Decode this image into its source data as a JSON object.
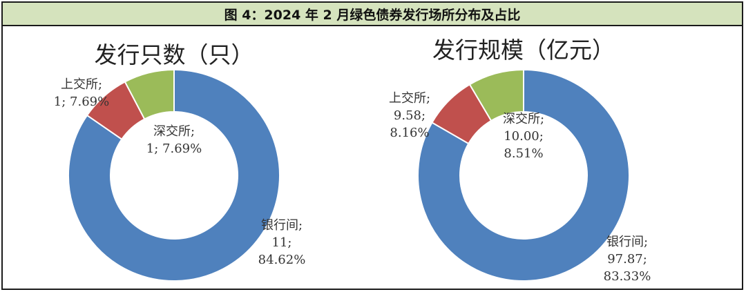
{
  "figure_title": "图 4：2024 年 2 月绿色债券发行场所分布及占比",
  "colors": {
    "bank": "#4f81bd",
    "sse": "#c0504d",
    "szse": "#9bbb59",
    "header_bg": "#d5e3bd"
  },
  "chart_data": [
    {
      "type": "pie",
      "title": "发行只数（只）",
      "slices": [
        {
          "name": "银行间",
          "value": 11,
          "percent": 84.62,
          "color": "#4f81bd",
          "label_lines": [
            "银行间;",
            "11;",
            "84.62%"
          ]
        },
        {
          "name": "上交所",
          "value": 1,
          "percent": 7.69,
          "color": "#c0504d",
          "label_lines": [
            "上交所;",
            "1; 7.69%"
          ]
        },
        {
          "name": "深交所",
          "value": 1,
          "percent": 7.69,
          "color": "#9bbb59",
          "label_lines": [
            "深交所;",
            "1; 7.69%"
          ]
        }
      ]
    },
    {
      "type": "pie",
      "title": "发行规模（亿元）",
      "slices": [
        {
          "name": "银行间",
          "value": 97.87,
          "percent": 83.33,
          "color": "#4f81bd",
          "label_lines": [
            "银行间;",
            "97.87;",
            "83.33%"
          ]
        },
        {
          "name": "上交所",
          "value": 9.58,
          "percent": 8.16,
          "color": "#c0504d",
          "label_lines": [
            "上交所;",
            "9.58;",
            "8.16%"
          ]
        },
        {
          "name": "深交所",
          "value": 10.0,
          "percent": 8.51,
          "color": "#9bbb59",
          "label_lines": [
            "深交所;",
            "10.00;",
            "8.51%"
          ]
        }
      ]
    }
  ]
}
